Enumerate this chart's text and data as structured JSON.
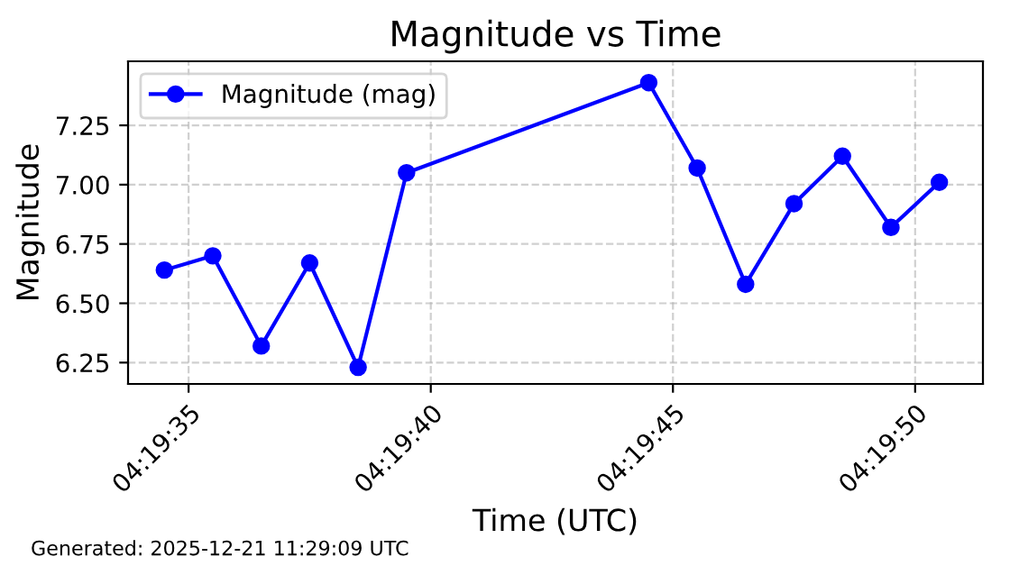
{
  "chart_data": {
    "type": "line",
    "title": "Magnitude vs Time",
    "xlabel": "Time (UTC)",
    "ylabel": "Magnitude",
    "x": [
      "2025-12-21T04:19:34.5",
      "2025-12-21T04:19:35.5",
      "2025-12-21T04:19:36.5",
      "2025-12-21T04:19:37.5",
      "2025-12-21T04:19:38.5",
      "2025-12-21T04:19:39.5",
      "2025-12-21T04:19:44.5",
      "2025-12-21T04:19:45.5",
      "2025-12-21T04:19:46.5",
      "2025-12-21T04:19:47.5",
      "2025-12-21T04:19:48.5",
      "2025-12-21T04:19:49.5",
      "2025-12-21T04:19:50.5"
    ],
    "series": [
      {
        "name": "Magnitude (mag)",
        "color": "#0000ff",
        "values": [
          6.64,
          6.7,
          6.32,
          6.67,
          6.23,
          7.05,
          7.43,
          7.07,
          6.58,
          6.92,
          7.12,
          6.82,
          7.01
        ]
      }
    ],
    "xlim": [
      "2025-12-21T04:19:33.75",
      "2025-12-21T04:19:51.4"
    ],
    "xticks": [
      {
        "value": "2025-12-21T04:19:35",
        "label": "04:19:35"
      },
      {
        "value": "2025-12-21T04:19:40",
        "label": "04:19:40"
      },
      {
        "value": "2025-12-21T04:19:45",
        "label": "04:19:45"
      },
      {
        "value": "2025-12-21T04:19:50",
        "label": "04:19:50"
      }
    ],
    "ylim": [
      6.16,
      7.52
    ],
    "yticks": [
      6.25,
      {
        "value": 6.5,
        "label": "6.50"
      },
      6.75,
      {
        "value": 7.0,
        "label": "7.00"
      },
      7.25
    ],
    "grid": true,
    "legend": "top left",
    "marker": "circle",
    "line_style": "solid",
    "annotations": [
      "Generated: 2025-12-21 11:29:09 UTC"
    ]
  }
}
